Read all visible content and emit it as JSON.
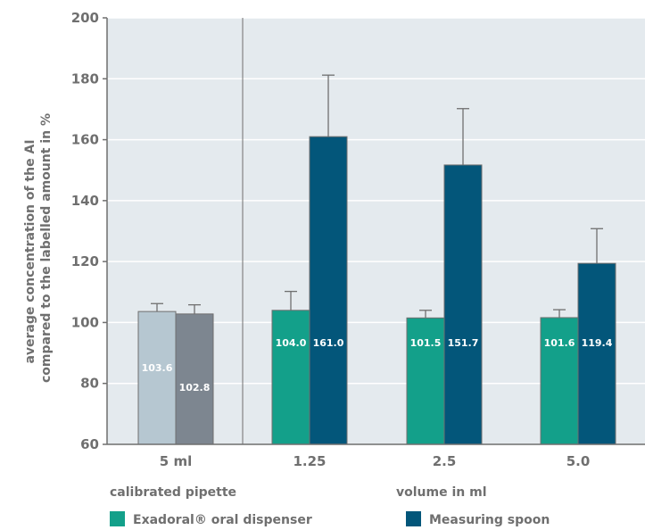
{
  "chart_data": {
    "type": "bar",
    "ylabel_lines": [
      "average concentration of the AI",
      "compared to the labelled amount in %"
    ],
    "ylim": [
      60,
      200
    ],
    "yticks": [
      60,
      80,
      100,
      120,
      140,
      160,
      180,
      200
    ],
    "grid": "horizontal",
    "groups": [
      {
        "label": "5 ml",
        "bars": [
          {
            "value": 103.6,
            "label": "103.6",
            "err": 106.2,
            "color": "#b6c7d1"
          },
          {
            "value": 102.8,
            "label": "102.8",
            "err": 105.8,
            "color": "#7d8690"
          }
        ]
      },
      {
        "label": "1.25",
        "bars": [
          {
            "value": 104.0,
            "label": "104.0",
            "err": 110.2,
            "color": "#13a08a",
            "series": 0
          },
          {
            "value": 161.0,
            "label": "161.0",
            "err": 181.2,
            "color": "#03567a",
            "series": 1
          }
        ]
      },
      {
        "label": "2.5",
        "bars": [
          {
            "value": 101.5,
            "label": "101.5",
            "err": 104.0,
            "color": "#13a08a",
            "series": 0
          },
          {
            "value": 151.7,
            "label": "151.7",
            "err": 170.2,
            "color": "#03567a",
            "series": 1
          }
        ]
      },
      {
        "label": "5.0",
        "bars": [
          {
            "value": 101.6,
            "label": "101.6",
            "err": 104.2,
            "color": "#13a08a",
            "series": 0
          },
          {
            "value": 119.4,
            "label": "119.4",
            "err": 130.8,
            "color": "#03567a",
            "series": 1
          }
        ]
      }
    ],
    "group_titles": {
      "left": "calibrated pipette",
      "right": "volume in ml"
    },
    "series": [
      {
        "name": "Exadoral® oral dispenser",
        "color": "#13a08a"
      },
      {
        "name": "Measuring spoon",
        "color": "#03567a"
      }
    ],
    "colors": {
      "plot_bg": "#e4eaee",
      "grid": "#ffffff",
      "axis": "#6f6f6f",
      "text": "#6f6f6f"
    }
  }
}
